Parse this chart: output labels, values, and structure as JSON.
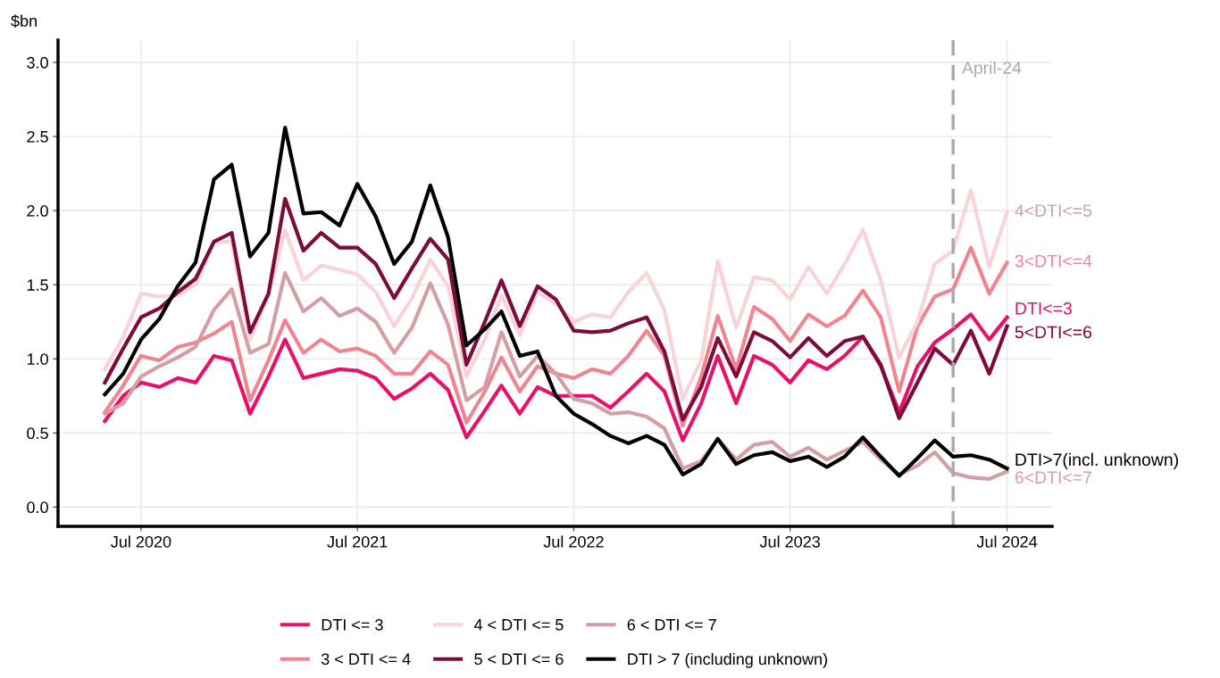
{
  "chart_data": {
    "type": "line",
    "ylabel": "$bn",
    "x": [
      "2020-05",
      "2020-06",
      "2020-07",
      "2020-08",
      "2020-09",
      "2020-10",
      "2020-11",
      "2020-12",
      "2021-01",
      "2021-02",
      "2021-03",
      "2021-04",
      "2021-05",
      "2021-06",
      "2021-07",
      "2021-08",
      "2021-09",
      "2021-10",
      "2021-11",
      "2021-12",
      "2022-01",
      "2022-02",
      "2022-03",
      "2022-04",
      "2022-05",
      "2022-06",
      "2022-07",
      "2022-08",
      "2022-09",
      "2022-10",
      "2022-11",
      "2022-12",
      "2023-01",
      "2023-02",
      "2023-03",
      "2023-04",
      "2023-05",
      "2023-06",
      "2023-07",
      "2023-08",
      "2023-09",
      "2023-10",
      "2023-11",
      "2023-12",
      "2024-01",
      "2024-02",
      "2024-03",
      "2024-04",
      "2024-05",
      "2024-06",
      "2024-07"
    ],
    "series": [
      {
        "name": "DTI <= 3",
        "color": "#e8106a",
        "values": [
          0.58,
          0.75,
          0.84,
          0.81,
          0.87,
          0.84,
          1.02,
          0.99,
          0.63,
          0.88,
          1.13,
          0.87,
          0.9,
          0.93,
          0.92,
          0.87,
          0.73,
          0.8,
          0.9,
          0.79,
          0.47,
          0.65,
          0.82,
          0.63,
          0.81,
          0.75,
          0.75,
          0.75,
          0.67,
          0.78,
          0.9,
          0.78,
          0.45,
          0.7,
          1.02,
          0.7,
          1.02,
          0.96,
          0.84,
          0.99,
          0.93,
          1.02,
          1.15,
          0.95,
          0.64,
          0.95,
          1.11,
          1.2,
          1.3,
          1.13,
          1.28
        ]
      },
      {
        "name": "3 < DTI <= 4",
        "color": "#f08592",
        "values": [
          0.64,
          0.82,
          1.02,
          0.99,
          1.08,
          1.11,
          1.17,
          1.25,
          0.72,
          0.99,
          1.26,
          1.04,
          1.13,
          1.05,
          1.07,
          1.02,
          0.9,
          0.9,
          1.05,
          0.96,
          0.57,
          0.78,
          1.01,
          0.78,
          0.95,
          0.9,
          0.87,
          0.93,
          0.9,
          1.02,
          1.19,
          1.02,
          0.55,
          0.88,
          1.29,
          0.93,
          1.35,
          1.27,
          1.12,
          1.3,
          1.22,
          1.29,
          1.46,
          1.28,
          0.78,
          1.22,
          1.42,
          1.47,
          1.75,
          1.44,
          1.65
        ]
      },
      {
        "name": "4 < DTI <= 5",
        "color": "#f9d3d5",
        "values": [
          0.93,
          1.15,
          1.44,
          1.42,
          1.43,
          1.5,
          1.79,
          1.79,
          1.13,
          1.43,
          1.87,
          1.53,
          1.63,
          1.6,
          1.57,
          1.45,
          1.22,
          1.41,
          1.67,
          1.49,
          0.88,
          1.13,
          1.43,
          1.16,
          1.45,
          1.37,
          1.25,
          1.3,
          1.28,
          1.45,
          1.58,
          1.33,
          0.73,
          0.99,
          1.66,
          1.21,
          1.55,
          1.53,
          1.4,
          1.62,
          1.44,
          1.64,
          1.87,
          1.53,
          1.01,
          1.25,
          1.64,
          1.73,
          2.14,
          1.62,
          1.99
        ]
      },
      {
        "name": "5 < DTI <= 6",
        "color": "#7b0c3b",
        "values": [
          0.84,
          1.07,
          1.28,
          1.34,
          1.45,
          1.54,
          1.79,
          1.85,
          1.18,
          1.44,
          2.08,
          1.73,
          1.85,
          1.75,
          1.75,
          1.64,
          1.41,
          1.61,
          1.81,
          1.67,
          0.96,
          1.25,
          1.53,
          1.22,
          1.49,
          1.4,
          1.19,
          1.18,
          1.19,
          1.24,
          1.28,
          1.05,
          0.59,
          0.81,
          1.14,
          0.88,
          1.18,
          1.12,
          1.01,
          1.14,
          1.02,
          1.12,
          1.15,
          0.96,
          0.6,
          0.84,
          1.07,
          0.96,
          1.19,
          0.9,
          1.22
        ]
      },
      {
        "name": "6 < DTI <= 7",
        "color": "#d49ea3",
        "values": [
          0.63,
          0.7,
          0.88,
          0.95,
          1.01,
          1.08,
          1.33,
          1.47,
          1.04,
          1.1,
          1.58,
          1.32,
          1.41,
          1.29,
          1.34,
          1.25,
          1.04,
          1.21,
          1.51,
          1.23,
          0.72,
          0.81,
          1.18,
          0.88,
          1.02,
          0.9,
          0.73,
          0.7,
          0.63,
          0.64,
          0.61,
          0.53,
          0.26,
          0.31,
          0.46,
          0.32,
          0.42,
          0.44,
          0.34,
          0.4,
          0.32,
          0.38,
          0.44,
          0.32,
          0.22,
          0.28,
          0.37,
          0.23,
          0.2,
          0.19,
          0.24
        ]
      },
      {
        "name": "DTI > 7 (including unknown)",
        "color": "#000000",
        "values": [
          0.76,
          0.9,
          1.13,
          1.27,
          1.49,
          1.65,
          2.21,
          2.31,
          1.69,
          1.85,
          2.56,
          1.98,
          1.99,
          1.9,
          2.18,
          1.96,
          1.64,
          1.79,
          2.17,
          1.82,
          1.09,
          1.2,
          1.32,
          1.02,
          1.05,
          0.75,
          0.63,
          0.56,
          0.48,
          0.43,
          0.48,
          0.42,
          0.22,
          0.29,
          0.46,
          0.29,
          0.35,
          0.37,
          0.31,
          0.34,
          0.27,
          0.34,
          0.47,
          0.34,
          0.21,
          0.33,
          0.45,
          0.34,
          0.35,
          0.32,
          0.26
        ]
      }
    ],
    "annotations": [
      {
        "text": "4<DTI<=5",
        "x": "2024-07",
        "y": 1.99
      },
      {
        "text": "3<DTI<=4",
        "x": "2024-07",
        "y": 1.65
      },
      {
        "text": "DTI<=3",
        "x": "2024-07",
        "y": 1.28
      },
      {
        "text": "5<DTI<=6",
        "x": "2024-07",
        "y": 1.22
      },
      {
        "text": "DTI>7(incl. unknown)",
        "x": "2024-07",
        "y": 0.26
      },
      {
        "text": "6<DTI<=7",
        "x": "2024-07",
        "y": 0.24
      }
    ],
    "ref_lines": [
      {
        "axis": "x",
        "value": "2024-04",
        "label": "April-24",
        "color": "#aaaaaa",
        "line_style": "dashed"
      }
    ],
    "xlim": [
      "2020-02-12",
      "2024-09-15"
    ],
    "xticks": [
      {
        "value": "2020-07",
        "label": "Jul 2020"
      },
      {
        "value": "2021-07",
        "label": "Jul 2021"
      },
      {
        "value": "2022-07",
        "label": "Jul 2022"
      },
      {
        "value": "2023-07",
        "label": "Jul 2023"
      },
      {
        "value": "2024-07",
        "label": "Jul 2024"
      }
    ],
    "ylim": [
      -0.13,
      3.15
    ],
    "yticks": [
      {
        "value": 0,
        "label": "0.0"
      },
      {
        "value": 0.5,
        "label": "0.5"
      },
      {
        "value": 1,
        "label": "1.0"
      },
      {
        "value": 1.5,
        "label": "1.5"
      },
      {
        "value": 2,
        "label": "2.0"
      },
      {
        "value": 2.5,
        "label": "2.5"
      },
      {
        "value": 3,
        "label": "3.0"
      }
    ],
    "grid": true,
    "legend": "bottom",
    "marker": "none",
    "line_style": "solid"
  }
}
